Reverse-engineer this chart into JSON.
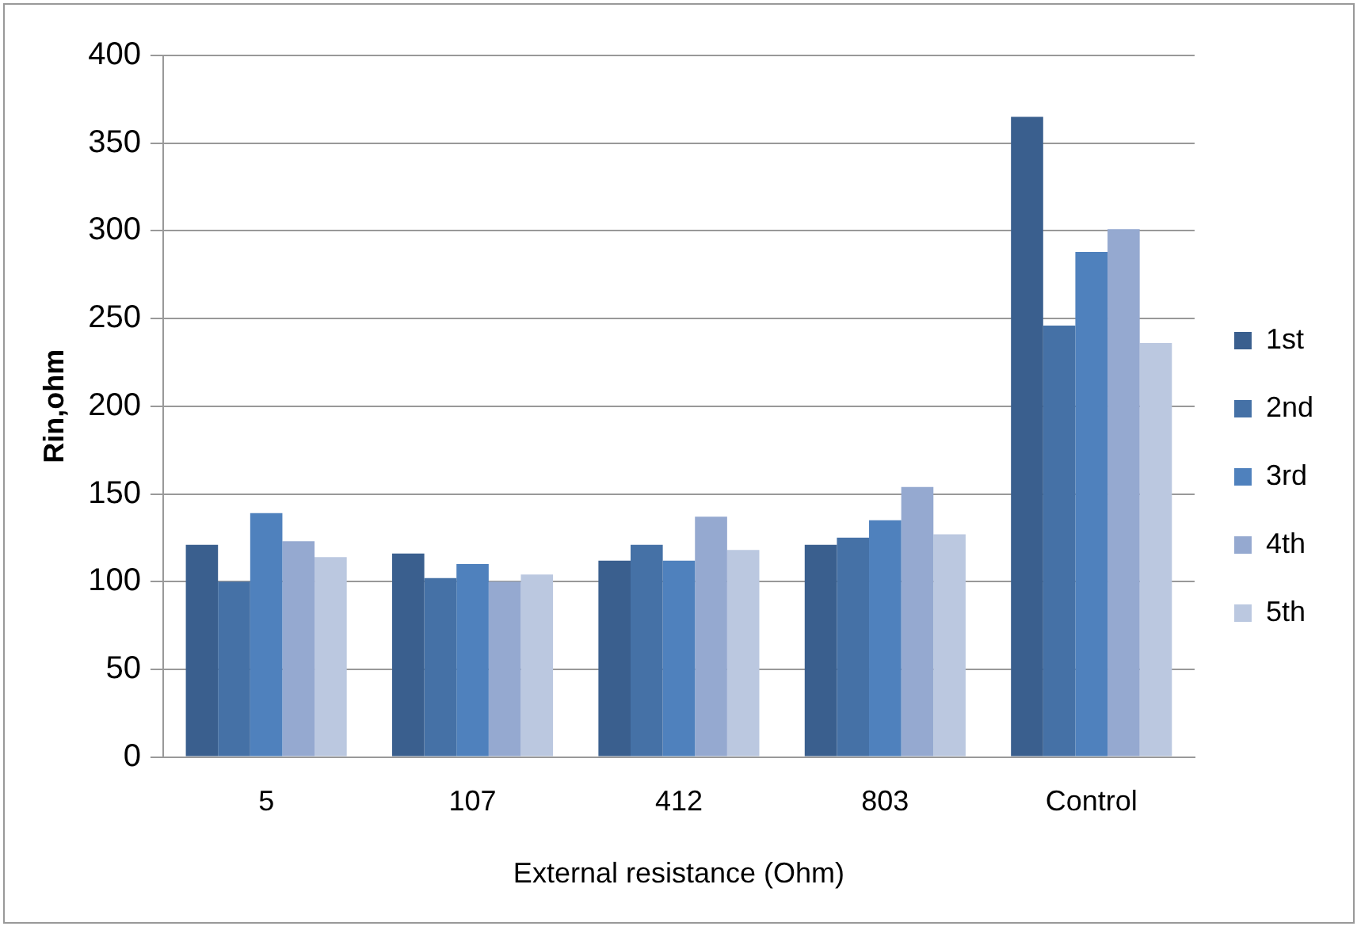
{
  "chart_data": {
    "type": "bar",
    "xlabel": "External resistance (Ohm)",
    "ylabel": "Rin,ohm",
    "categories": [
      "5",
      "107",
      "412",
      "803",
      "Control"
    ],
    "series": [
      {
        "name": "1st",
        "color": "#3a5f8e",
        "values": [
          121,
          116,
          112,
          121,
          365
        ]
      },
      {
        "name": "2nd",
        "color": "#4571a6",
        "values": [
          100,
          102,
          121,
          125,
          246
        ]
      },
      {
        "name": "3rd",
        "color": "#4f81bd",
        "values": [
          139,
          110,
          112,
          135,
          288
        ]
      },
      {
        "name": "4th",
        "color": "#95a9d0",
        "values": [
          123,
          100,
          137,
          154,
          301
        ]
      },
      {
        "name": "5th",
        "color": "#bbc8e0",
        "values": [
          114,
          104,
          118,
          127,
          236
        ]
      }
    ],
    "ylim": [
      0,
      400
    ],
    "yticks": [
      0,
      50,
      100,
      150,
      200,
      250,
      300,
      350,
      400
    ],
    "grid": "y",
    "legend": "right"
  }
}
